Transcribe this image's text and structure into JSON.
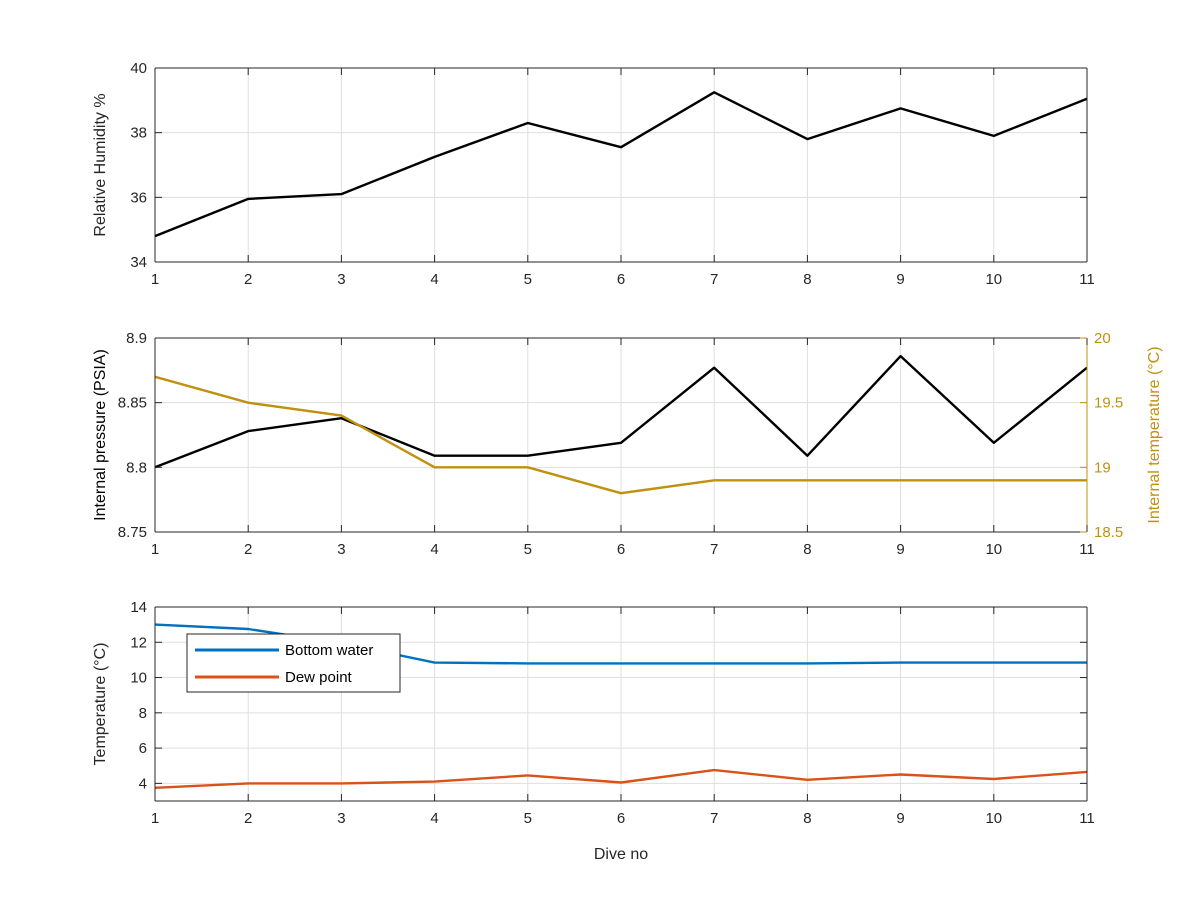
{
  "chart_data": [
    {
      "type": "line",
      "xlabel": "",
      "ylabel": "Relative Humidity %",
      "x": [
        1,
        2,
        3,
        4,
        5,
        6,
        7,
        8,
        9,
        10,
        11
      ],
      "xlim": [
        1,
        11
      ],
      "ylim": [
        34,
        40
      ],
      "xticks": [
        "1",
        "2",
        "3",
        "4",
        "5",
        "6",
        "7",
        "8",
        "9",
        "10",
        "11"
      ],
      "yticks": [
        "34",
        "36",
        "38",
        "40"
      ],
      "grid": true,
      "series": [
        {
          "axis": "left",
          "color": "#000000",
          "values": [
            34.8,
            35.95,
            36.1,
            37.25,
            38.3,
            37.55,
            39.25,
            37.8,
            38.75,
            37.9,
            39.05
          ]
        }
      ]
    },
    {
      "type": "line",
      "xlabel": "",
      "ylabel": "Internal pressure (PSIA)",
      "ylabel_right": "Internal temperature (°C)",
      "x": [
        1,
        2,
        3,
        4,
        5,
        6,
        7,
        8,
        9,
        10,
        11
      ],
      "xlim": [
        1,
        11
      ],
      "ylim": [
        8.75,
        8.9
      ],
      "ylim_right": [
        18.5,
        20
      ],
      "xticks": [
        "1",
        "2",
        "3",
        "4",
        "5",
        "6",
        "7",
        "8",
        "9",
        "10",
        "11"
      ],
      "yticks": [
        "8.75",
        "8.8",
        "8.85",
        "8.9"
      ],
      "yticks_right": [
        "18.5",
        "19",
        "19.5",
        "20"
      ],
      "grid": true,
      "right_axis_color": "#c0910f",
      "series": [
        {
          "axis": "left",
          "color": "#000000",
          "values": [
            8.8,
            8.828,
            8.838,
            8.809,
            8.809,
            8.819,
            8.877,
            8.809,
            8.886,
            8.819,
            8.877
          ]
        },
        {
          "axis": "right",
          "color": "#c0910f",
          "values": [
            19.7,
            19.5,
            19.4,
            19.0,
            19.0,
            18.8,
            18.9,
            18.9,
            18.9,
            18.9,
            18.9
          ]
        }
      ]
    },
    {
      "type": "line",
      "xlabel": "Dive no",
      "ylabel": "Temperature (°C)",
      "x": [
        1,
        2,
        3,
        4,
        5,
        6,
        7,
        8,
        9,
        10,
        11
      ],
      "xlim": [
        1,
        11
      ],
      "ylim": [
        3,
        14
      ],
      "xticks": [
        "1",
        "2",
        "3",
        "4",
        "5",
        "6",
        "7",
        "8",
        "9",
        "10",
        "11"
      ],
      "yticks": [
        "4",
        "6",
        "8",
        "10",
        "12",
        "14"
      ],
      "grid": true,
      "legend": {
        "position": "top-left",
        "entries": [
          "Bottom water",
          "Dew point"
        ]
      },
      "series": [
        {
          "name": "Bottom water",
          "axis": "left",
          "color": "#0072bd",
          "values": [
            13.0,
            12.75,
            11.95,
            10.85,
            10.8,
            10.8,
            10.8,
            10.8,
            10.85,
            10.85,
            10.85
          ]
        },
        {
          "name": "Dew point",
          "axis": "left",
          "color": "#d95319",
          "values": [
            3.75,
            4.0,
            4.0,
            4.1,
            4.45,
            4.05,
            4.75,
            4.2,
            4.5,
            4.25,
            4.65
          ]
        }
      ]
    }
  ]
}
